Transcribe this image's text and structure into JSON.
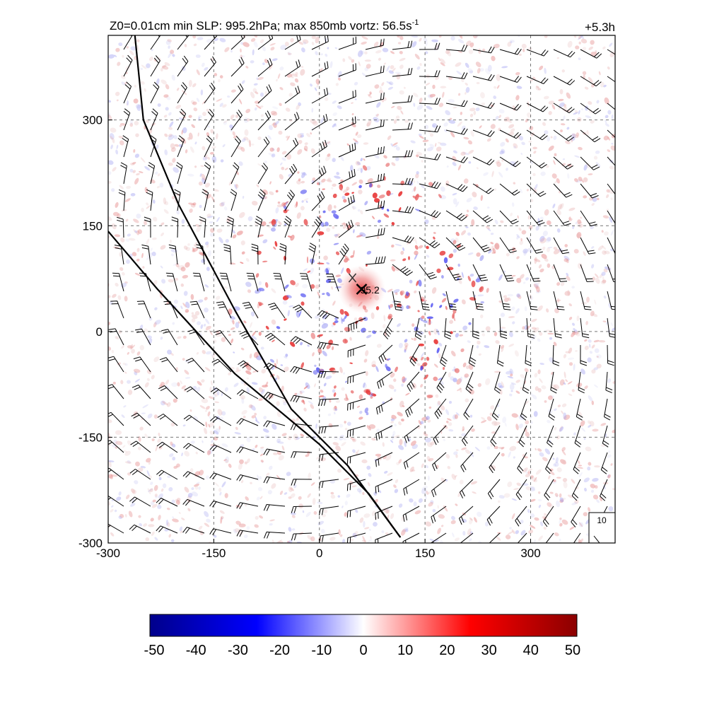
{
  "chart_data": [
    {
      "type": "heatmap",
      "title": "Z0=0.01cm  min SLP: 995.2hPa; max 850mb vortz:  56.5s",
      "title_superscript": "-1",
      "time_label": "+5.3h",
      "x_ticks": [
        "-300",
        "-150",
        "0",
        "150",
        "300"
      ],
      "y_ticks": [
        "300",
        "150",
        "0",
        "-150",
        "-300"
      ],
      "xlim": [
        -300,
        420
      ],
      "ylim": [
        -300,
        420
      ],
      "grid": true,
      "center_marker": {
        "x": 60,
        "y": 60,
        "label": "995.2",
        "label_display": "95.2"
      },
      "thick_lines": [
        {
          "points": [
            [
              -262,
              420
            ],
            [
              -250,
              300
            ],
            [
              -200,
              180
            ],
            [
              -120,
              30
            ],
            [
              -40,
              -110
            ],
            [
              40,
              -190
            ],
            [
              115,
              -292
            ]
          ]
        },
        {
          "points": [
            [
              -300,
              142
            ],
            [
              -230,
              60
            ],
            [
              -120,
              -60
            ],
            [
              0,
              -160
            ],
            [
              70,
              -230
            ],
            [
              115,
              -292
            ]
          ]
        }
      ],
      "wind_reference": {
        "label": "10",
        "speed": 10
      },
      "wind_barbs": "grid of wind barbs rotating cyclonically around the center marker"
    },
    {
      "type": "colorbar",
      "tick_labels": [
        "-50",
        "-40",
        "-30",
        "-20",
        "-10",
        "0",
        "10",
        "20",
        "30",
        "40",
        "50"
      ],
      "range": [
        -50,
        50
      ],
      "colors": [
        "#00008b",
        "#0000ff",
        "#ffffff",
        "#ff0000",
        "#8b0000"
      ]
    }
  ]
}
